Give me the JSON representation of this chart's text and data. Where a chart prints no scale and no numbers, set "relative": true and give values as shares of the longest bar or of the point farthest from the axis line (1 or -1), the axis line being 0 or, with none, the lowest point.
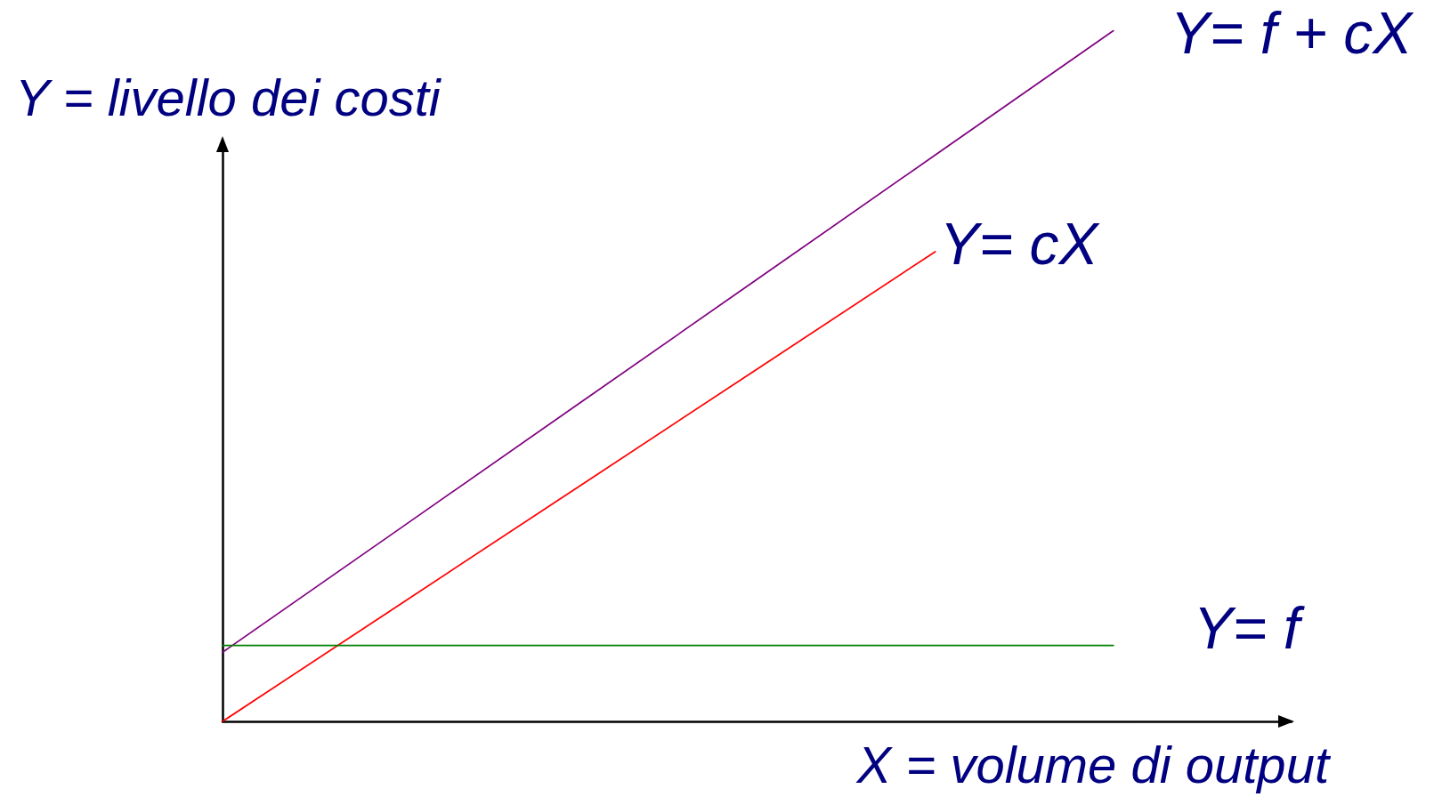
{
  "chart_data": {
    "type": "line",
    "relative": true,
    "xlabel": "X = volume di output",
    "ylabel": "Y = livello dei costi",
    "marker": "none",
    "categories": [
      null,
      null,
      null,
      null,
      null,
      null,
      null
    ],
    "series": [
      {
        "name": "Y= f + cX",
        "color": "#800080",
        "values": [
          0.1,
          0.28,
          0.46,
          0.64,
          0.82,
          1,
          null
        ]
      },
      {
        "name": "Y= cX",
        "color": "#ff0000",
        "values": [
          0,
          0.17,
          0.34,
          0.51,
          0.68,
          null,
          null
        ]
      },
      {
        "name": "Y= f",
        "color": "#008000",
        "values": [
          0.11,
          0.11,
          0.11,
          0.11,
          0.11,
          0.11,
          null
        ]
      }
    ]
  }
}
